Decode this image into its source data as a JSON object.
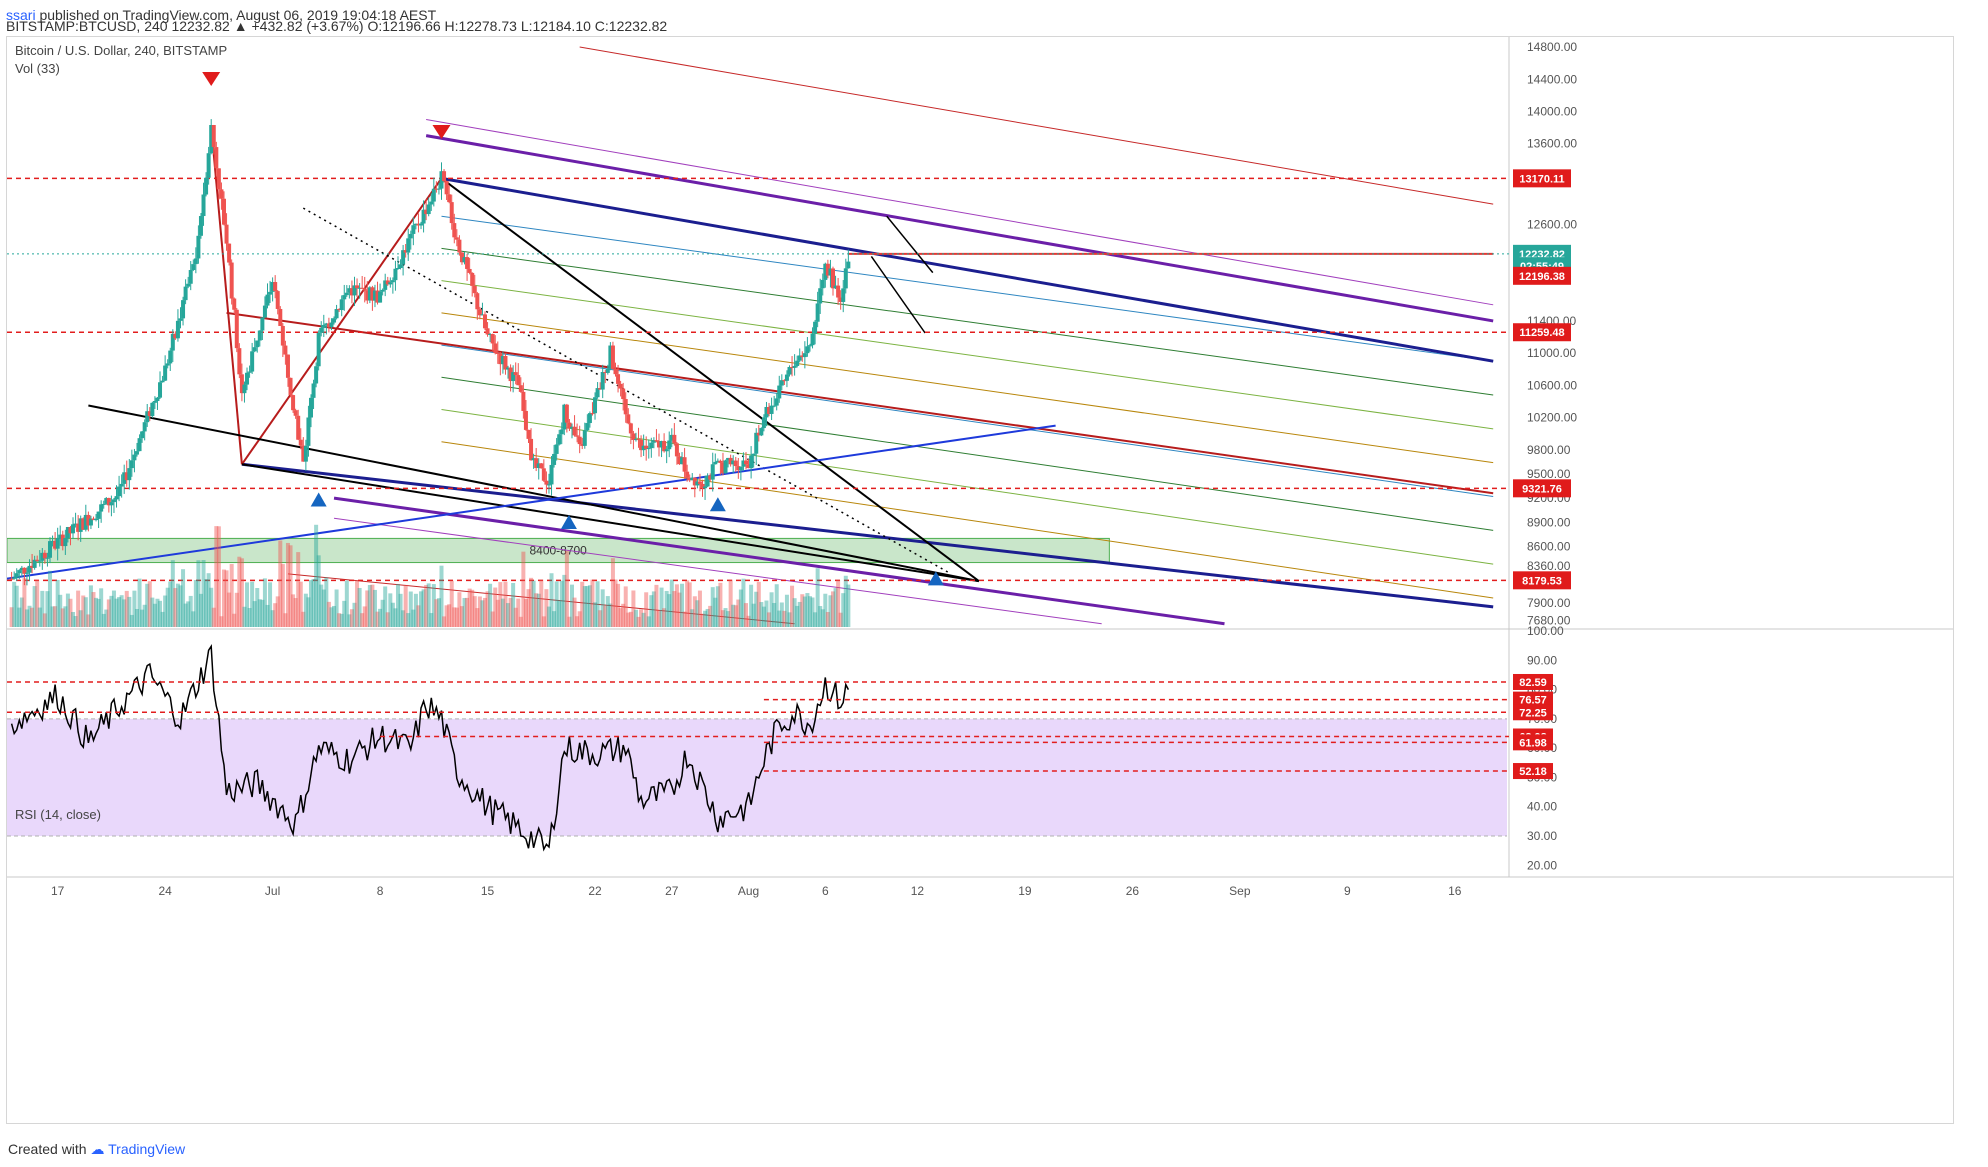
{
  "header": {
    "user": "ssari",
    "published_text": "published on TradingView.com, August 06, 2019 19:04:18 AEST",
    "symbol": "BITSTAMP:BTCUSD,",
    "interval": "240",
    "last": "12232.82",
    "change": "▲ +432.82 (+3.67%)",
    "ohlc_open": "O:12196.66",
    "ohlc_high": "H:12278.73",
    "ohlc_low": "L:12184.10",
    "ohlc_close": "C:12232.82"
  },
  "legend": {
    "title": "Bitcoin / U.S. Dollar, 240, BITSTAMP",
    "vol": "Vol (33)",
    "rsi": "RSI (14, close)"
  },
  "footer": {
    "created_with": "Created with",
    "brand": "TradingView"
  },
  "colors": {
    "up": "#26a69a",
    "down": "#ef5350",
    "red_dashed": "#e21d1d",
    "navy": "#1b1e8f",
    "purple": "#6b1fa8",
    "dark_red": "#b71c1c",
    "zone_fill": "#a5d6a7",
    "rsi_band": "#e9d8fb"
  },
  "chart_data": [
    {
      "type": "candlestick",
      "title": "Bitcoin / U.S. Dollar, 240, BITSTAMP",
      "ylim": [
        7600,
        14900
      ],
      "y_ticks": [
        7680,
        7900,
        8120,
        8360,
        8600,
        8900,
        9200,
        9500,
        9800,
        10200,
        10600,
        11000,
        11400,
        12600,
        13600,
        14000,
        14400,
        14800
      ],
      "x_ticks": [
        "17",
        "24",
        "Jul",
        "8",
        "15",
        "22",
        "27",
        "Aug",
        "6",
        "12",
        "19",
        "26",
        "Sep",
        "9",
        "16"
      ],
      "x_tick_days": [
        0,
        7,
        14,
        21,
        28,
        35,
        40,
        45,
        50,
        56,
        63,
        70,
        77,
        84,
        91
      ],
      "xlim_days": [
        -3.3,
        94.4
      ],
      "key_points": [
        {
          "day": -3,
          "price": 8200
        },
        {
          "day": 4,
          "price": 9250
        },
        {
          "day": 7,
          "price": 10800
        },
        {
          "day": 9,
          "price": 12200
        },
        {
          "day": 10,
          "price": 13800
        },
        {
          "day": 11,
          "price": 12400
        },
        {
          "day": 12,
          "price": 10500
        },
        {
          "day": 14,
          "price": 11900
        },
        {
          "day": 15.5,
          "price": 10200
        },
        {
          "day": 16,
          "price": 9620
        },
        {
          "day": 17,
          "price": 11200
        },
        {
          "day": 19,
          "price": 11800
        },
        {
          "day": 21,
          "price": 11700
        },
        {
          "day": 24,
          "price": 12800
        },
        {
          "day": 25,
          "price": 13170
        },
        {
          "day": 26,
          "price": 12400
        },
        {
          "day": 28,
          "price": 11200
        },
        {
          "day": 30,
          "price": 10600
        },
        {
          "day": 31,
          "price": 9600
        },
        {
          "day": 32,
          "price": 9400
        },
        {
          "day": 33,
          "price": 10300
        },
        {
          "day": 34,
          "price": 9800
        },
        {
          "day": 35,
          "price": 10400
        },
        {
          "day": 36,
          "price": 11000
        },
        {
          "day": 37,
          "price": 10200
        },
        {
          "day": 38,
          "price": 9800
        },
        {
          "day": 40,
          "price": 9900
        },
        {
          "day": 41,
          "price": 9500
        },
        {
          "day": 42,
          "price": 9400
        },
        {
          "day": 43,
          "price": 9600
        },
        {
          "day": 45,
          "price": 9650
        },
        {
          "day": 46,
          "price": 10200
        },
        {
          "day": 47,
          "price": 10500
        },
        {
          "day": 48,
          "price": 10900
        },
        {
          "day": 49,
          "price": 11100
        },
        {
          "day": 50,
          "price": 12100
        },
        {
          "day": 51,
          "price": 11700
        },
        {
          "day": 51.5,
          "price": 12232.82
        }
      ],
      "volume_ylim": [
        0,
        1
      ],
      "horizontal_levels": [
        13170.11,
        11259.48,
        9321.76,
        8179.53
      ],
      "price_labels": [
        "13170.11",
        "12232.82",
        "02:55:49",
        "12196.38",
        "11259.48",
        "9321.76",
        "8179.53"
      ],
      "zone": {
        "label": "8400-8700",
        "low": 8400,
        "high": 8700,
        "day_start": -3.3,
        "day_end": 68.5
      },
      "markers_down_days": [
        10,
        25
      ],
      "markers_up_days": [
        17,
        33.3,
        43,
        57.2
      ]
    },
    {
      "type": "line",
      "title": "RSI (14, close)",
      "ylim": [
        16,
        100
      ],
      "y_ticks": [
        20,
        30,
        40,
        50,
        60,
        70,
        80,
        90,
        100
      ],
      "band": [
        30,
        70
      ],
      "levels": [
        "82.59",
        "76.57",
        "72.25",
        "63.98",
        "61.98",
        "52.18"
      ],
      "level_values": [
        82.59,
        76.57,
        72.25,
        63.98,
        61.98,
        52.18
      ],
      "key_points": [
        {
          "day": -3,
          "price": 68
        },
        {
          "day": 0,
          "price": 78
        },
        {
          "day": 2,
          "price": 62
        },
        {
          "day": 4,
          "price": 74
        },
        {
          "day": 6,
          "price": 85
        },
        {
          "day": 8,
          "price": 70
        },
        {
          "day": 10,
          "price": 92
        },
        {
          "day": 11,
          "price": 45
        },
        {
          "day": 13,
          "price": 48
        },
        {
          "day": 15.5,
          "price": 34
        },
        {
          "day": 17,
          "price": 60
        },
        {
          "day": 19,
          "price": 56
        },
        {
          "day": 21,
          "price": 64
        },
        {
          "day": 23,
          "price": 60
        },
        {
          "day": 24,
          "price": 75
        },
        {
          "day": 25,
          "price": 70
        },
        {
          "day": 26,
          "price": 52
        },
        {
          "day": 28,
          "price": 40
        },
        {
          "day": 31,
          "price": 29
        },
        {
          "day": 32,
          "price": 25
        },
        {
          "day": 33,
          "price": 60
        },
        {
          "day": 35,
          "price": 58
        },
        {
          "day": 37,
          "price": 60
        },
        {
          "day": 38,
          "price": 42
        },
        {
          "day": 40,
          "price": 45
        },
        {
          "day": 41,
          "price": 58
        },
        {
          "day": 43,
          "price": 36
        },
        {
          "day": 45,
          "price": 40
        },
        {
          "day": 46,
          "price": 56
        },
        {
          "day": 47,
          "price": 68
        },
        {
          "day": 48,
          "price": 72
        },
        {
          "day": 49,
          "price": 68
        },
        {
          "day": 50,
          "price": 82
        },
        {
          "day": 51,
          "price": 76
        },
        {
          "day": 51.5,
          "price": 80
        }
      ]
    }
  ]
}
